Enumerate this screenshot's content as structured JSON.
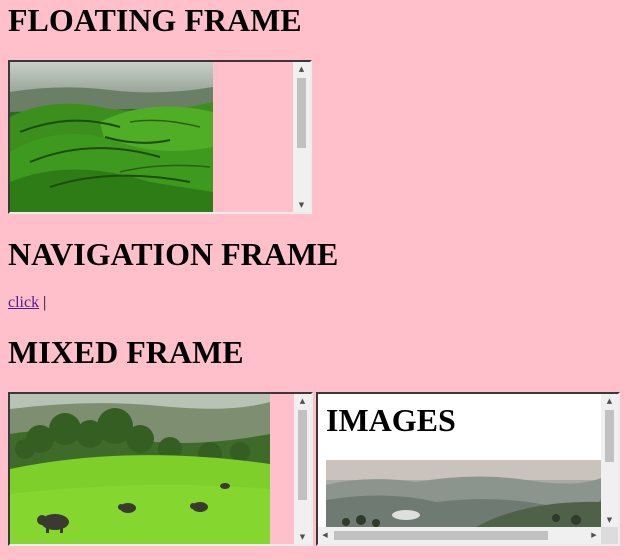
{
  "sections": {
    "floating_title": "FLOATING FRAME",
    "navigation_title": "NAVIGATION FRAME",
    "mixed_title": "MIXED FRAME"
  },
  "navigation": {
    "link_label": "click",
    "separator": "|"
  },
  "images_frame": {
    "heading": "IMAGES"
  },
  "scrollbars": {
    "floating_v_fraction": 0.62,
    "mixed_left_v_fraction": 0.72,
    "images_v_fraction": 0.6,
    "images_h_fraction": 0.82
  },
  "images": {
    "tea_hills": "tea-plantation-hills",
    "elephants": "elephants-on-meadow",
    "mountains": "misty-mountains"
  },
  "colors": {
    "background": "#ffc0cb",
    "link": "#551a8b",
    "frame_bg": "#ffffff"
  }
}
